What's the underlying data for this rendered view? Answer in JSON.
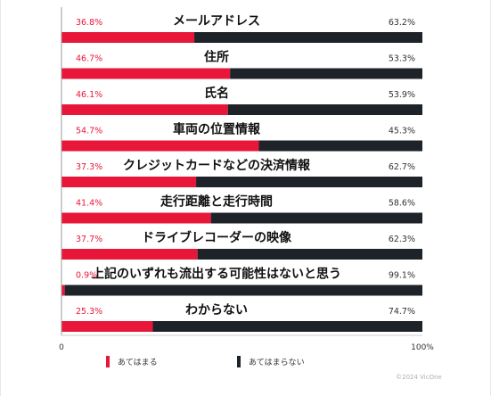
{
  "chart_data": {
    "type": "bar",
    "stacked": true,
    "orientation": "horizontal",
    "categories": [
      "メールアドレス",
      "住所",
      "氏名",
      "車両の位置情報",
      "クレジットカードなどの決済情報",
      "走行距離と走行時間",
      "ドライブレコーダーの映像",
      "上記のいずれも流出する可能性はないと思う",
      "わからない"
    ],
    "series": [
      {
        "name": "あてはまる",
        "color": "#e8173a",
        "values": [
          36.8,
          46.7,
          46.1,
          54.7,
          37.3,
          41.4,
          37.7,
          0.9,
          25.3
        ]
      },
      {
        "name": "あてはまらない",
        "color": "#1e2229",
        "values": [
          63.2,
          53.3,
          53.9,
          45.3,
          62.7,
          58.6,
          62.3,
          99.1,
          74.7
        ]
      }
    ],
    "value_labels_left": [
      "36.8%",
      "46.7%",
      "46.1%",
      "54.7%",
      "37.3%",
      "41.4%",
      "37.7%",
      "0.9%",
      "25.3%"
    ],
    "value_labels_right": [
      "63.2%",
      "53.3%",
      "53.9%",
      "45.3%",
      "62.7%",
      "58.6%",
      "62.3%",
      "99.1%",
      "74.7%"
    ],
    "xlim": [
      0,
      100
    ],
    "x_tick_labels": [
      "0",
      "100%"
    ],
    "legend_position": "bottom-left",
    "grid": false
  },
  "copyright": "©2024 VicOne"
}
